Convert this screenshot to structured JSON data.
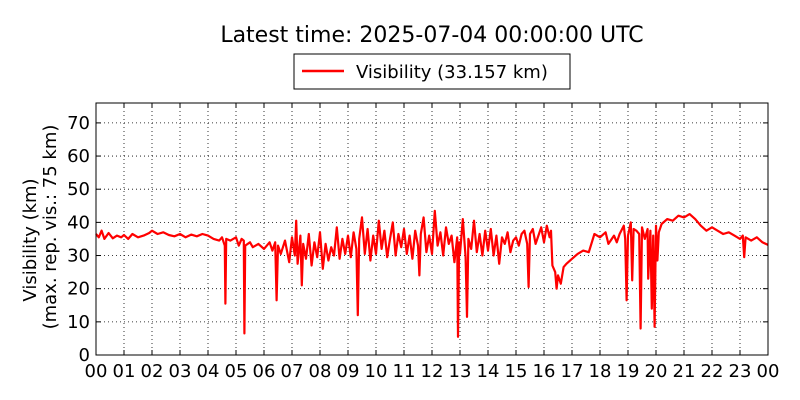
{
  "chart_data": {
    "type": "line",
    "title": "Latest time: 2025-07-04 00:00:00 UTC",
    "ylabel_line1": "Visibility (km)",
    "ylabel_line2": "(max. rep. vis.: 75 km)",
    "legend": {
      "label": "Visibility (33.157 km)",
      "placement": "top-center, above plot"
    },
    "ylim": [
      0,
      76
    ],
    "xlim": [
      0,
      24
    ],
    "yticks": [
      0,
      10,
      20,
      30,
      40,
      50,
      60,
      70
    ],
    "xtick_labels": [
      "00",
      "01",
      "02",
      "03",
      "04",
      "05",
      "06",
      "07",
      "08",
      "09",
      "10",
      "11",
      "12",
      "13",
      "14",
      "15",
      "16",
      "17",
      "18",
      "19",
      "20",
      "21",
      "22",
      "23",
      "00"
    ],
    "grid": true,
    "series": [
      {
        "name": "Visibility (33.157 km)",
        "color": "#ff0000",
        "x_unit": "hour of day (UTC)",
        "points": [
          [
            0.0,
            36.5
          ],
          [
            0.1,
            35.5
          ],
          [
            0.2,
            37.5
          ],
          [
            0.3,
            35.0
          ],
          [
            0.45,
            36.8
          ],
          [
            0.6,
            35.2
          ],
          [
            0.75,
            36.0
          ],
          [
            0.9,
            35.5
          ],
          [
            1.0,
            36.2
          ],
          [
            1.15,
            35.0
          ],
          [
            1.3,
            36.5
          ],
          [
            1.5,
            35.5
          ],
          [
            1.7,
            36.0
          ],
          [
            1.9,
            36.8
          ],
          [
            2.0,
            37.5
          ],
          [
            2.2,
            36.5
          ],
          [
            2.4,
            37.0
          ],
          [
            2.6,
            36.2
          ],
          [
            2.8,
            35.8
          ],
          [
            3.0,
            36.5
          ],
          [
            3.2,
            35.5
          ],
          [
            3.4,
            36.3
          ],
          [
            3.6,
            35.8
          ],
          [
            3.8,
            36.5
          ],
          [
            4.0,
            36.0
          ],
          [
            4.2,
            35.0
          ],
          [
            4.4,
            34.5
          ],
          [
            4.5,
            35.5
          ],
          [
            4.6,
            33.0
          ],
          [
            4.62,
            15.5
          ],
          [
            4.65,
            35.0
          ],
          [
            4.8,
            34.5
          ],
          [
            5.0,
            35.5
          ],
          [
            5.1,
            33.0
          ],
          [
            5.2,
            35.0
          ],
          [
            5.28,
            34.5
          ],
          [
            5.3,
            6.5
          ],
          [
            5.33,
            33.0
          ],
          [
            5.5,
            34.0
          ],
          [
            5.6,
            32.5
          ],
          [
            5.8,
            33.5
          ],
          [
            6.0,
            32.0
          ],
          [
            6.2,
            34.0
          ],
          [
            6.3,
            31.5
          ],
          [
            6.4,
            34.0
          ],
          [
            6.45,
            16.5
          ],
          [
            6.5,
            33.0
          ],
          [
            6.6,
            30.5
          ],
          [
            6.75,
            34.5
          ],
          [
            6.9,
            28.0
          ],
          [
            7.0,
            35.5
          ],
          [
            7.1,
            30.0
          ],
          [
            7.15,
            40.5
          ],
          [
            7.2,
            27.5
          ],
          [
            7.3,
            36.0
          ],
          [
            7.35,
            21.0
          ],
          [
            7.4,
            33.5
          ],
          [
            7.5,
            29.0
          ],
          [
            7.6,
            36.5
          ],
          [
            7.7,
            27.0
          ],
          [
            7.8,
            34.0
          ],
          [
            7.9,
            29.5
          ],
          [
            8.0,
            37.0
          ],
          [
            8.1,
            26.0
          ],
          [
            8.2,
            33.5
          ],
          [
            8.3,
            28.5
          ],
          [
            8.4,
            32.5
          ],
          [
            8.5,
            30.0
          ],
          [
            8.6,
            38.5
          ],
          [
            8.7,
            29.0
          ],
          [
            8.8,
            35.0
          ],
          [
            8.9,
            30.5
          ],
          [
            9.0,
            36.0
          ],
          [
            9.1,
            29.5
          ],
          [
            9.2,
            37.0
          ],
          [
            9.3,
            32.0
          ],
          [
            9.35,
            12.0
          ],
          [
            9.4,
            35.0
          ],
          [
            9.5,
            41.5
          ],
          [
            9.6,
            30.5
          ],
          [
            9.7,
            38.0
          ],
          [
            9.8,
            28.5
          ],
          [
            9.9,
            36.0
          ],
          [
            10.0,
            30.5
          ],
          [
            10.1,
            40.5
          ],
          [
            10.2,
            32.0
          ],
          [
            10.3,
            37.5
          ],
          [
            10.4,
            29.5
          ],
          [
            10.5,
            35.0
          ],
          [
            10.6,
            40.0
          ],
          [
            10.7,
            30.0
          ],
          [
            10.8,
            36.5
          ],
          [
            10.9,
            32.5
          ],
          [
            11.0,
            38.0
          ],
          [
            11.1,
            30.5
          ],
          [
            11.2,
            36.0
          ],
          [
            11.3,
            29.0
          ],
          [
            11.4,
            37.5
          ],
          [
            11.5,
            33.0
          ],
          [
            11.55,
            24.0
          ],
          [
            11.6,
            36.5
          ],
          [
            11.7,
            41.5
          ],
          [
            11.8,
            31.0
          ],
          [
            11.9,
            36.0
          ],
          [
            12.0,
            30.5
          ],
          [
            12.1,
            43.5
          ],
          [
            12.2,
            33.0
          ],
          [
            12.3,
            37.0
          ],
          [
            12.4,
            30.0
          ],
          [
            12.5,
            38.5
          ],
          [
            12.6,
            33.5
          ],
          [
            12.7,
            36.0
          ],
          [
            12.8,
            28.0
          ],
          [
            12.9,
            35.5
          ],
          [
            12.93,
            5.5
          ],
          [
            12.97,
            34.0
          ],
          [
            13.0,
            30.5
          ],
          [
            13.1,
            41.0
          ],
          [
            13.2,
            29.5
          ],
          [
            13.25,
            11.5
          ],
          [
            13.3,
            35.0
          ],
          [
            13.4,
            32.0
          ],
          [
            13.5,
            40.5
          ],
          [
            13.6,
            31.0
          ],
          [
            13.7,
            36.5
          ],
          [
            13.8,
            30.0
          ],
          [
            13.9,
            37.5
          ],
          [
            14.0,
            31.5
          ],
          [
            14.1,
            38.0
          ],
          [
            14.2,
            30.0
          ],
          [
            14.3,
            36.0
          ],
          [
            14.4,
            27.5
          ],
          [
            14.5,
            35.5
          ],
          [
            14.6,
            33.5
          ],
          [
            14.7,
            37.0
          ],
          [
            14.8,
            31.0
          ],
          [
            14.9,
            34.5
          ],
          [
            15.0,
            35.5
          ],
          [
            15.1,
            33.0
          ],
          [
            15.2,
            36.5
          ],
          [
            15.3,
            37.5
          ],
          [
            15.4,
            33.5
          ],
          [
            15.45,
            20.5
          ],
          [
            15.5,
            36.5
          ],
          [
            15.6,
            38.0
          ],
          [
            15.7,
            33.5
          ],
          [
            15.8,
            36.0
          ],
          [
            15.9,
            38.5
          ],
          [
            16.0,
            34.0
          ],
          [
            16.1,
            39.0
          ],
          [
            16.2,
            35.5
          ],
          [
            16.25,
            37.5
          ],
          [
            16.3,
            27.0
          ],
          [
            16.4,
            25.0
          ],
          [
            16.45,
            20.0
          ],
          [
            16.5,
            24.0
          ],
          [
            16.6,
            21.5
          ],
          [
            16.7,
            26.5
          ],
          [
            16.8,
            27.5
          ],
          [
            17.0,
            29.0
          ],
          [
            17.2,
            30.5
          ],
          [
            17.4,
            31.5
          ],
          [
            17.6,
            31.0
          ],
          [
            17.8,
            36.5
          ],
          [
            18.0,
            35.5
          ],
          [
            18.2,
            37.0
          ],
          [
            18.3,
            33.5
          ],
          [
            18.5,
            36.0
          ],
          [
            18.6,
            34.0
          ],
          [
            18.7,
            36.5
          ],
          [
            18.85,
            39.0
          ],
          [
            18.9,
            35.0
          ],
          [
            18.95,
            16.5
          ],
          [
            19.0,
            36.0
          ],
          [
            19.1,
            40.0
          ],
          [
            19.15,
            22.5
          ],
          [
            19.2,
            38.0
          ],
          [
            19.3,
            37.5
          ],
          [
            19.4,
            36.5
          ],
          [
            19.45,
            8.0
          ],
          [
            19.5,
            38.5
          ],
          [
            19.6,
            35.0
          ],
          [
            19.7,
            38.0
          ],
          [
            19.72,
            23.0
          ],
          [
            19.8,
            37.5
          ],
          [
            19.85,
            14.0
          ],
          [
            19.9,
            36.0
          ],
          [
            19.95,
            8.5
          ],
          [
            20.0,
            39.0
          ],
          [
            20.05,
            28.5
          ],
          [
            20.1,
            37.0
          ],
          [
            20.2,
            39.5
          ],
          [
            20.4,
            41.0
          ],
          [
            20.6,
            40.5
          ],
          [
            20.8,
            42.0
          ],
          [
            21.0,
            41.5
          ],
          [
            21.2,
            42.5
          ],
          [
            21.4,
            41.0
          ],
          [
            21.6,
            39.0
          ],
          [
            21.8,
            37.5
          ],
          [
            22.0,
            38.5
          ],
          [
            22.2,
            37.5
          ],
          [
            22.4,
            36.5
          ],
          [
            22.6,
            37.0
          ],
          [
            22.8,
            36.0
          ],
          [
            23.0,
            35.0
          ],
          [
            23.1,
            36.0
          ],
          [
            23.15,
            29.5
          ],
          [
            23.2,
            35.5
          ],
          [
            23.4,
            34.5
          ],
          [
            23.6,
            35.5
          ],
          [
            23.8,
            34.0
          ],
          [
            24.0,
            33.2
          ]
        ]
      }
    ]
  }
}
